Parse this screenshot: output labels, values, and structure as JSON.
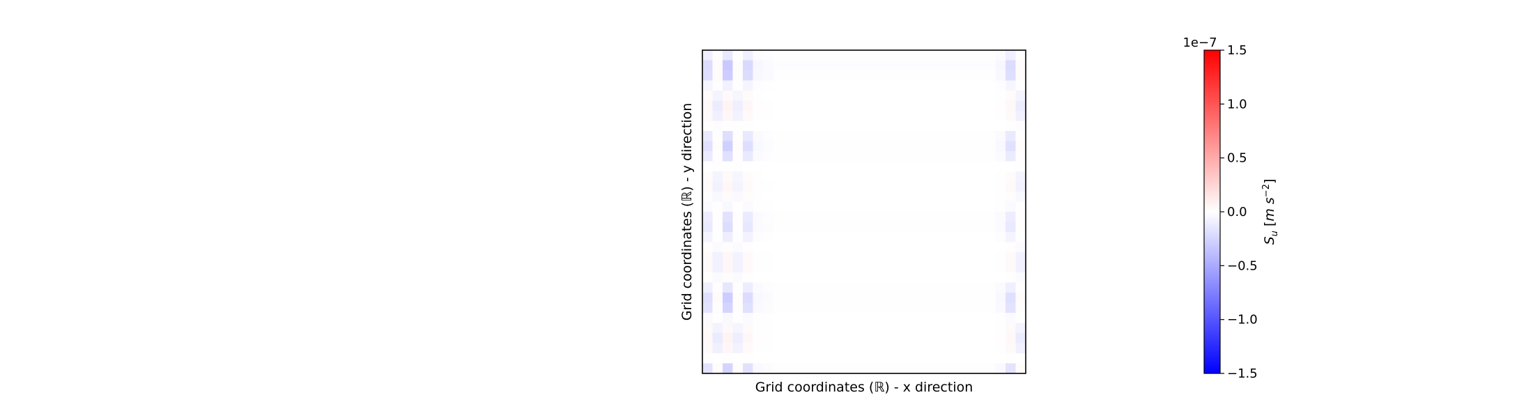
{
  "chart_data": {
    "type": "heatmap",
    "title": "",
    "xlabel": "Grid coordinates (ℝ) - x direction",
    "ylabel": "Grid coordinates (ℝ) - y direction",
    "xticks": [],
    "yticks": [],
    "colormap": "bwr",
    "colorbar": {
      "label": "S_u [m s^-2]",
      "label_main": "S",
      "label_sub": "u",
      "label_unit_open": " [",
      "label_unit_m": "m",
      "label_unit_s": " s",
      "label_unit_exp": "−2",
      "label_unit_close": "]",
      "offset_text": "1e−7",
      "vmin": -1.5,
      "vmax": 1.5,
      "ticks": [
        -1.5,
        -1.0,
        -0.5,
        0.0,
        0.5,
        1.0,
        1.5
      ],
      "tick_labels": [
        "−1.5",
        "−1.0",
        "−0.5",
        "0.0",
        "0.5",
        "1.0",
        "1.5"
      ],
      "colors": [
        "#0000ff",
        "#ffffff",
        "#ff0000"
      ]
    },
    "grid": {
      "columns": 32,
      "rows": 32,
      "pattern": "Alternating positive/negative S_u anomalies concentrated in the leftmost ~5 columns (strongest in column 2) and weaker ones in the rightmost ~2 columns; interior values near 0"
    }
  }
}
